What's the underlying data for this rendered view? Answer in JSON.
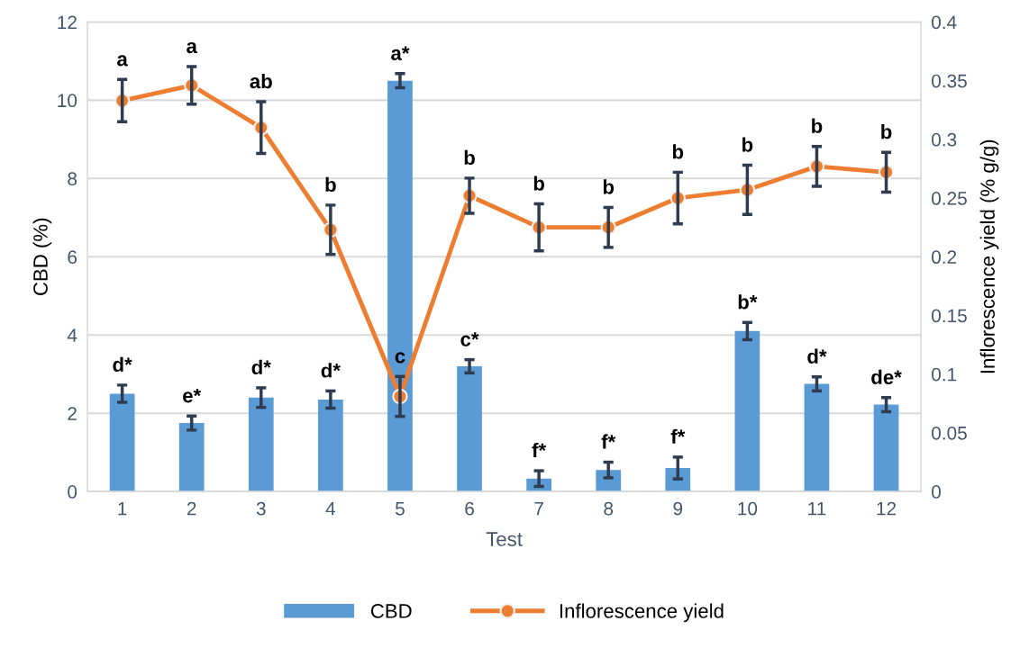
{
  "chart_data": {
    "type": "bar",
    "xlabel": "Test",
    "ylabel": "CBD (%)",
    "y2label": "Inflorescence yield (% g/g)",
    "categories": [
      "1",
      "2",
      "3",
      "4",
      "5",
      "6",
      "7",
      "8",
      "9",
      "10",
      "11",
      "12"
    ],
    "series": [
      {
        "name": "CBD",
        "color": "#5b9bd5",
        "values": [
          2.5,
          1.75,
          2.4,
          2.35,
          10.5,
          3.2,
          0.33,
          0.55,
          0.6,
          4.1,
          2.75,
          2.22
        ],
        "errors": [
          0.22,
          0.18,
          0.25,
          0.22,
          0.18,
          0.17,
          0.2,
          0.2,
          0.28,
          0.22,
          0.18,
          0.18
        ],
        "value_labels": [
          "d*",
          "e*",
          "d*",
          "d*",
          "a*",
          "c*",
          "f*",
          "f*",
          "f*",
          "b*",
          "d*",
          "de*"
        ]
      },
      {
        "name": "Inflorescence yield",
        "type": "line",
        "axis": "y2",
        "color": "#ed7d31",
        "marker": "circle",
        "values": [
          0.333,
          0.346,
          0.31,
          0.223,
          0.081,
          0.252,
          0.225,
          0.225,
          0.25,
          0.257,
          0.277,
          0.272
        ],
        "errors": [
          0.018,
          0.016,
          0.022,
          0.021,
          0.017,
          0.015,
          0.02,
          0.017,
          0.022,
          0.021,
          0.017,
          0.017
        ],
        "value_labels": [
          "a",
          "a",
          "ab",
          "b",
          "c",
          "b",
          "b",
          "b",
          "b",
          "b",
          "b",
          "b"
        ]
      }
    ],
    "ylim": [
      0,
      12
    ],
    "yticks": [
      0,
      2,
      4,
      6,
      8,
      10,
      12
    ],
    "y2lim": [
      0,
      0.4
    ],
    "y2ticks": [
      0,
      0.05,
      0.1,
      0.15,
      0.2,
      0.25,
      0.3,
      0.35,
      0.4
    ],
    "grid": "y",
    "legend": "bottom"
  }
}
